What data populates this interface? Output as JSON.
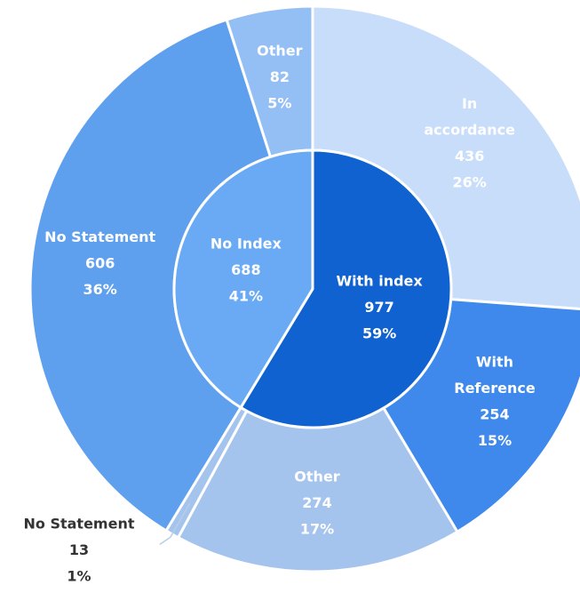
{
  "chart_data": {
    "type": "pie",
    "subtype": "sunburst",
    "inner_ring": [
      {
        "label": "With index",
        "value": 977,
        "percent": "59%",
        "color": "#0f62d0",
        "text_color": "#ffffff"
      },
      {
        "label": "No Index",
        "value": 688,
        "percent": "41%",
        "color": "#6aaaf5",
        "text_color": "#ffffff"
      }
    ],
    "outer_ring": [
      {
        "parent": "With index",
        "label": "In accordance",
        "label_lines": [
          "In",
          "accordance"
        ],
        "value": 436,
        "percent": "26%",
        "color": "#c7ddf9",
        "text_color": "#ffffff"
      },
      {
        "parent": "With index",
        "label": "With Reference",
        "label_lines": [
          "With",
          "Reference"
        ],
        "value": 254,
        "percent": "15%",
        "color": "#3f89ec",
        "text_color": "#ffffff"
      },
      {
        "parent": "With index",
        "label": "Other",
        "label_lines": [
          "Other"
        ],
        "value": 274,
        "percent": "17%",
        "color": "#a4c4ee",
        "text_color": "#ffffff"
      },
      {
        "parent": "With index",
        "label": "No Statement",
        "label_lines": [
          "No Statement"
        ],
        "value": 13,
        "percent": "1%",
        "color": "#a4c4ee",
        "text_color": "#333333",
        "callout": true
      },
      {
        "parent": "No Index",
        "label": "No Statement",
        "label_lines": [
          "No Statement"
        ],
        "value": 606,
        "percent": "36%",
        "color": "#5fa0ee",
        "text_color": "#ffffff"
      },
      {
        "parent": "No Index",
        "label": "Other",
        "label_lines": [
          "Other"
        ],
        "value": 82,
        "percent": "5%",
        "color": "#93bff5",
        "text_color": "#ffffff"
      }
    ]
  }
}
